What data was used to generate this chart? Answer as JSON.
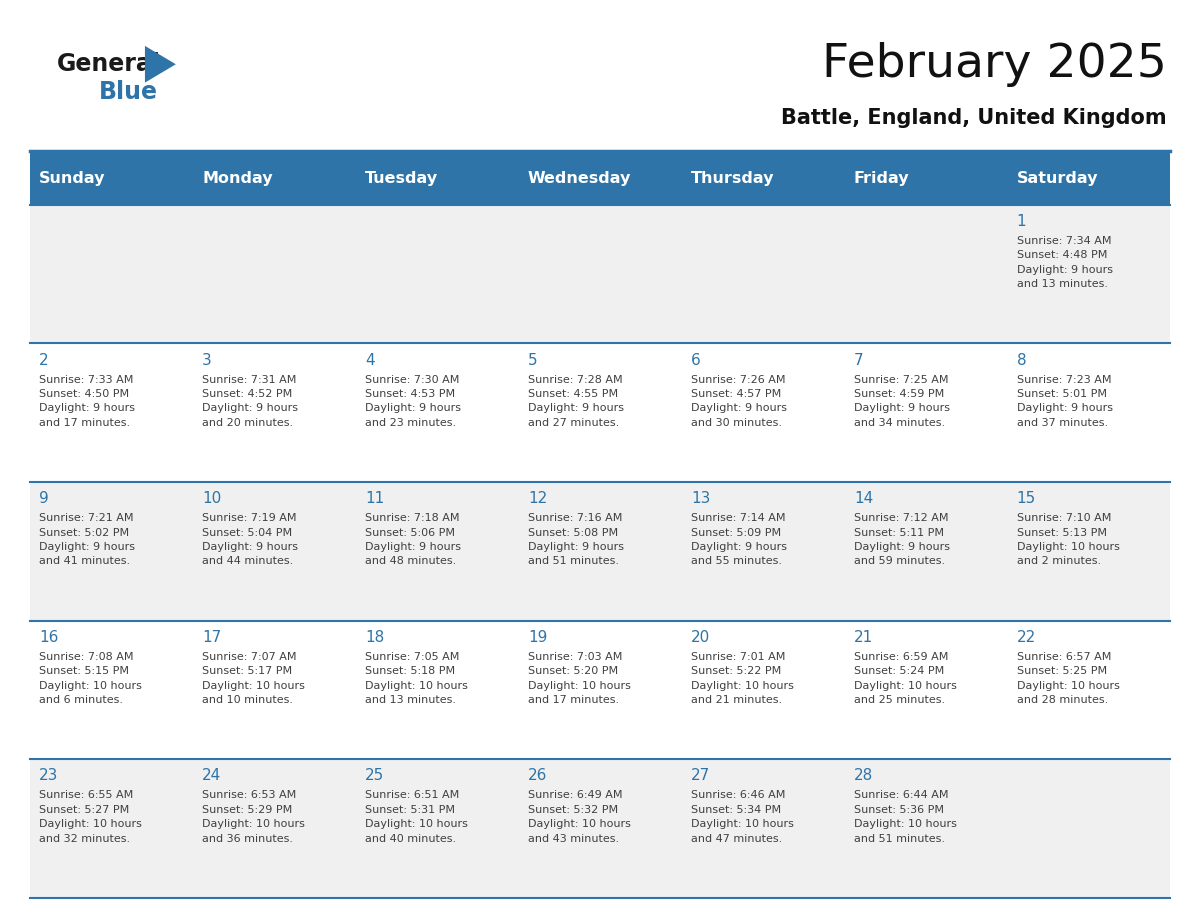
{
  "title": "February 2025",
  "subtitle": "Battle, England, United Kingdom",
  "header_bg_color": "#2E74A8",
  "header_text_color": "#FFFFFF",
  "border_color": "#2E74A8",
  "text_color": "#404040",
  "day_number_color": "#2E74A8",
  "days_of_week": [
    "Sunday",
    "Monday",
    "Tuesday",
    "Wednesday",
    "Thursday",
    "Friday",
    "Saturday"
  ],
  "weeks": [
    [
      {
        "day": "",
        "info": ""
      },
      {
        "day": "",
        "info": ""
      },
      {
        "day": "",
        "info": ""
      },
      {
        "day": "",
        "info": ""
      },
      {
        "day": "",
        "info": ""
      },
      {
        "day": "",
        "info": ""
      },
      {
        "day": "1",
        "info": "Sunrise: 7:34 AM\nSunset: 4:48 PM\nDaylight: 9 hours\nand 13 minutes."
      }
    ],
    [
      {
        "day": "2",
        "info": "Sunrise: 7:33 AM\nSunset: 4:50 PM\nDaylight: 9 hours\nand 17 minutes."
      },
      {
        "day": "3",
        "info": "Sunrise: 7:31 AM\nSunset: 4:52 PM\nDaylight: 9 hours\nand 20 minutes."
      },
      {
        "day": "4",
        "info": "Sunrise: 7:30 AM\nSunset: 4:53 PM\nDaylight: 9 hours\nand 23 minutes."
      },
      {
        "day": "5",
        "info": "Sunrise: 7:28 AM\nSunset: 4:55 PM\nDaylight: 9 hours\nand 27 minutes."
      },
      {
        "day": "6",
        "info": "Sunrise: 7:26 AM\nSunset: 4:57 PM\nDaylight: 9 hours\nand 30 minutes."
      },
      {
        "day": "7",
        "info": "Sunrise: 7:25 AM\nSunset: 4:59 PM\nDaylight: 9 hours\nand 34 minutes."
      },
      {
        "day": "8",
        "info": "Sunrise: 7:23 AM\nSunset: 5:01 PM\nDaylight: 9 hours\nand 37 minutes."
      }
    ],
    [
      {
        "day": "9",
        "info": "Sunrise: 7:21 AM\nSunset: 5:02 PM\nDaylight: 9 hours\nand 41 minutes."
      },
      {
        "day": "10",
        "info": "Sunrise: 7:19 AM\nSunset: 5:04 PM\nDaylight: 9 hours\nand 44 minutes."
      },
      {
        "day": "11",
        "info": "Sunrise: 7:18 AM\nSunset: 5:06 PM\nDaylight: 9 hours\nand 48 minutes."
      },
      {
        "day": "12",
        "info": "Sunrise: 7:16 AM\nSunset: 5:08 PM\nDaylight: 9 hours\nand 51 minutes."
      },
      {
        "day": "13",
        "info": "Sunrise: 7:14 AM\nSunset: 5:09 PM\nDaylight: 9 hours\nand 55 minutes."
      },
      {
        "day": "14",
        "info": "Sunrise: 7:12 AM\nSunset: 5:11 PM\nDaylight: 9 hours\nand 59 minutes."
      },
      {
        "day": "15",
        "info": "Sunrise: 7:10 AM\nSunset: 5:13 PM\nDaylight: 10 hours\nand 2 minutes."
      }
    ],
    [
      {
        "day": "16",
        "info": "Sunrise: 7:08 AM\nSunset: 5:15 PM\nDaylight: 10 hours\nand 6 minutes."
      },
      {
        "day": "17",
        "info": "Sunrise: 7:07 AM\nSunset: 5:17 PM\nDaylight: 10 hours\nand 10 minutes."
      },
      {
        "day": "18",
        "info": "Sunrise: 7:05 AM\nSunset: 5:18 PM\nDaylight: 10 hours\nand 13 minutes."
      },
      {
        "day": "19",
        "info": "Sunrise: 7:03 AM\nSunset: 5:20 PM\nDaylight: 10 hours\nand 17 minutes."
      },
      {
        "day": "20",
        "info": "Sunrise: 7:01 AM\nSunset: 5:22 PM\nDaylight: 10 hours\nand 21 minutes."
      },
      {
        "day": "21",
        "info": "Sunrise: 6:59 AM\nSunset: 5:24 PM\nDaylight: 10 hours\nand 25 minutes."
      },
      {
        "day": "22",
        "info": "Sunrise: 6:57 AM\nSunset: 5:25 PM\nDaylight: 10 hours\nand 28 minutes."
      }
    ],
    [
      {
        "day": "23",
        "info": "Sunrise: 6:55 AM\nSunset: 5:27 PM\nDaylight: 10 hours\nand 32 minutes."
      },
      {
        "day": "24",
        "info": "Sunrise: 6:53 AM\nSunset: 5:29 PM\nDaylight: 10 hours\nand 36 minutes."
      },
      {
        "day": "25",
        "info": "Sunrise: 6:51 AM\nSunset: 5:31 PM\nDaylight: 10 hours\nand 40 minutes."
      },
      {
        "day": "26",
        "info": "Sunrise: 6:49 AM\nSunset: 5:32 PM\nDaylight: 10 hours\nand 43 minutes."
      },
      {
        "day": "27",
        "info": "Sunrise: 6:46 AM\nSunset: 5:34 PM\nDaylight: 10 hours\nand 47 minutes."
      },
      {
        "day": "28",
        "info": "Sunrise: 6:44 AM\nSunset: 5:36 PM\nDaylight: 10 hours\nand 51 minutes."
      },
      {
        "day": "",
        "info": ""
      }
    ]
  ],
  "logo_color_general": "#1a1a1a",
  "logo_color_blue": "#2E74A8",
  "logo_triangle_color": "#2E74A8",
  "row_colors": [
    "#F0F0F0",
    "#FFFFFF",
    "#F0F0F0",
    "#FFFFFF",
    "#F0F0F0"
  ]
}
